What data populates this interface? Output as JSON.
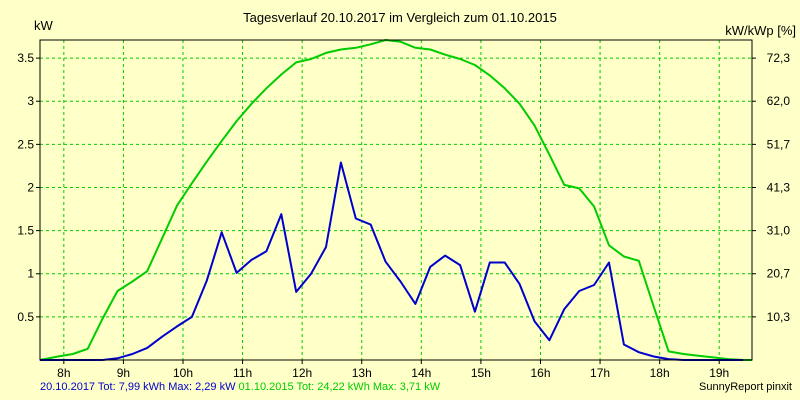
{
  "chart_data": {
    "type": "line",
    "title": "Tagesverlauf 20.10.2017 im Vergleich zum 01.10.2015",
    "ylabel_left": "kW",
    "ylabel_right": "kW/kWp [%]",
    "xlim": [
      7.6,
      19.55
    ],
    "ylim": [
      0,
      3.71
    ],
    "x_ticks": [
      8,
      9,
      10,
      11,
      12,
      13,
      14,
      15,
      16,
      17,
      18,
      19
    ],
    "x_tick_labels": [
      "8h",
      "9h",
      "10h",
      "11h",
      "12h",
      "13h",
      "14h",
      "15h",
      "16h",
      "17h",
      "18h",
      "19h"
    ],
    "y_ticks": [
      0.5,
      1,
      1.5,
      2,
      2.5,
      3,
      3.5
    ],
    "y_tick_labels": [
      "0.5",
      "1",
      "1.5",
      "2",
      "2.5",
      "3",
      "3.5"
    ],
    "y2_tick_labels": [
      "10,3",
      "20,7",
      "31,0",
      "41,3",
      "51,7",
      "62,0",
      "72,3"
    ],
    "grid": true,
    "series": [
      {
        "name": "20.10.2017",
        "color": "#0000cc",
        "x": [
          7.6,
          8.15,
          8.4,
          8.65,
          8.9,
          9.15,
          9.4,
          9.65,
          9.9,
          10.15,
          10.4,
          10.65,
          10.9,
          11.15,
          11.4,
          11.65,
          11.9,
          12.15,
          12.4,
          12.65,
          12.9,
          13.15,
          13.4,
          13.65,
          13.9,
          14.15,
          14.4,
          14.65,
          14.9,
          15.15,
          15.4,
          15.65,
          15.9,
          16.15,
          16.4,
          16.65,
          16.9,
          17.15,
          17.4,
          17.65,
          17.9,
          18.15,
          18.4,
          18.65,
          18.9,
          19.15,
          19.4
        ],
        "y": [
          0,
          0,
          0,
          0,
          0.02,
          0.07,
          0.14,
          0.27,
          0.39,
          0.5,
          0.92,
          1.48,
          1.01,
          1.16,
          1.26,
          1.69,
          0.79,
          1.0,
          1.31,
          2.29,
          1.64,
          1.57,
          1.14,
          0.91,
          0.65,
          1.08,
          1.21,
          1.1,
          0.56,
          1.13,
          1.13,
          0.88,
          0.45,
          0.23,
          0.59,
          0.8,
          0.87,
          1.13,
          0.18,
          0.09,
          0.04,
          0.01,
          0,
          0,
          0,
          0,
          0
        ]
      },
      {
        "name": "01.10.2015",
        "color": "#00cc00",
        "x": [
          7.6,
          7.9,
          8.15,
          8.4,
          8.65,
          8.9,
          9.15,
          9.4,
          9.65,
          9.9,
          10.15,
          10.4,
          10.65,
          10.9,
          11.15,
          11.4,
          11.65,
          11.9,
          12.15,
          12.4,
          12.65,
          12.9,
          13.15,
          13.4,
          13.65,
          13.9,
          14.15,
          14.4,
          14.65,
          14.9,
          15.15,
          15.4,
          15.65,
          15.9,
          16.15,
          16.4,
          16.65,
          16.9,
          17.15,
          17.4,
          17.65,
          17.9,
          18.15,
          18.4,
          18.65,
          18.9,
          19.15,
          19.4,
          19.55
        ],
        "y": [
          0,
          0.04,
          0.07,
          0.13,
          0.48,
          0.8,
          0.91,
          1.03,
          1.41,
          1.79,
          2.05,
          2.3,
          2.54,
          2.77,
          2.97,
          3.15,
          3.31,
          3.45,
          3.49,
          3.56,
          3.6,
          3.62,
          3.66,
          3.71,
          3.69,
          3.62,
          3.6,
          3.54,
          3.49,
          3.42,
          3.3,
          3.15,
          2.97,
          2.72,
          2.38,
          2.03,
          1.99,
          1.78,
          1.33,
          1.2,
          1.15,
          0.62,
          0.1,
          0.07,
          0.05,
          0.03,
          0.01,
          0,
          0
        ]
      }
    ]
  },
  "footer": {
    "s1_text": "20.10.2017 Tot: 7,99 kWh Max: 2,29 kW",
    "s2_text": "01.10.2015 Tot: 24,22 kWh Max: 3,71 kW",
    "source": "SunnyReport pinxit"
  }
}
